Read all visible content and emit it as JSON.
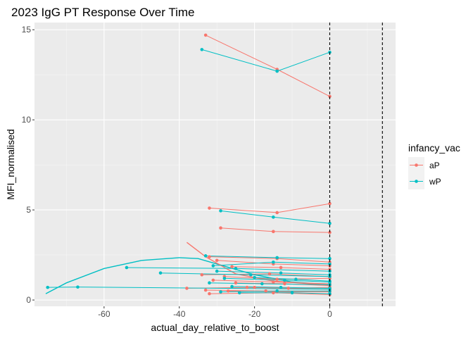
{
  "chart_data": {
    "type": "line",
    "title": "2023 IgG PT Response Over Time",
    "xlabel": "actual_day_relative_to_boost",
    "ylabel": "MFI_normalised",
    "xlim": [
      -78.5,
      17.5
    ],
    "ylim": [
      -0.35,
      15.4
    ],
    "x_ticks": [
      -60,
      -40,
      -20,
      0
    ],
    "x_tick_labels": [
      "-60",
      "-40",
      "-20",
      "0"
    ],
    "y_ticks": [
      0,
      5,
      10,
      15
    ],
    "y_tick_labels": [
      "0",
      "5",
      "10",
      "15"
    ],
    "grid": true,
    "vlines": [
      0,
      14
    ],
    "legend": {
      "title": "infancy_vac",
      "position": "right",
      "entries": [
        {
          "label": "aP",
          "color": "#F8766D"
        },
        {
          "label": "wP",
          "color": "#00BFC4"
        }
      ]
    },
    "series": [
      {
        "name": "aP",
        "color": "#F8766D",
        "subjects": [
          [
            [
              -33,
              14.7
            ],
            [
              -14,
              12.8
            ],
            [
              0,
              11.3
            ]
          ],
          [
            [
              -32,
              5.1
            ],
            [
              -14,
              4.85
            ],
            [
              0,
              5.35
            ]
          ],
          [
            [
              -29,
              4.0
            ],
            [
              -15,
              3.8
            ],
            [
              0,
              3.75
            ]
          ],
          [
            [
              -32,
              2.4
            ],
            [
              -14,
              2.3
            ],
            [
              0,
              2.1
            ]
          ],
          [
            [
              -30,
              2.2
            ],
            [
              -15,
              2.0
            ],
            [
              0,
              1.9
            ]
          ],
          [
            [
              -26,
              1.85
            ],
            [
              -13,
              1.8
            ],
            [
              0,
              1.7
            ]
          ],
          [
            [
              -34,
              1.4
            ],
            [
              -16,
              1.45
            ],
            [
              0,
              1.3
            ]
          ],
          [
            [
              -28,
              1.3
            ],
            [
              -14,
              1.15
            ],
            [
              0,
              1.2
            ]
          ],
          [
            [
              -31,
              1.1
            ],
            [
              -15,
              1.0
            ],
            [
              0,
              0.9
            ]
          ],
          [
            [
              -25,
              0.95
            ],
            [
              -12,
              0.9
            ],
            [
              0,
              0.8
            ]
          ],
          [
            [
              -38,
              0.65
            ],
            [
              -20,
              0.7
            ],
            [
              0,
              0.6
            ]
          ],
          [
            [
              -33,
              0.55
            ],
            [
              -17,
              0.5
            ],
            [
              0,
              0.5
            ]
          ],
          [
            [
              -27,
              0.5
            ],
            [
              -14,
              0.45
            ],
            [
              0,
              0.45
            ]
          ],
          [
            [
              -32,
              0.35
            ],
            [
              -15,
              0.4
            ],
            [
              0,
              0.3
            ]
          ],
          [
            [
              -22,
              0.7
            ],
            [
              -11,
              0.65
            ],
            [
              0,
              0.7
            ]
          ]
        ]
      },
      {
        "name": "wP",
        "color": "#00BFC4",
        "subjects": [
          [
            [
              -34,
              13.9
            ],
            [
              -14,
              12.7
            ],
            [
              0,
              13.75
            ]
          ],
          [
            [
              -29,
              4.95
            ],
            [
              -15,
              4.6
            ],
            [
              0,
              4.25
            ]
          ],
          [
            [
              -33,
              2.45
            ],
            [
              -14,
              2.35
            ],
            [
              0,
              2.3
            ]
          ],
          [
            [
              -31,
              1.9
            ],
            [
              -15,
              2.1
            ],
            [
              0,
              2.0
            ]
          ],
          [
            [
              -54,
              1.8
            ],
            [
              -25,
              1.75
            ],
            [
              0,
              1.6
            ]
          ],
          [
            [
              -45,
              1.5
            ],
            [
              -21,
              1.4
            ],
            [
              0,
              1.3
            ]
          ],
          [
            [
              -30,
              1.6
            ],
            [
              -13,
              1.5
            ],
            [
              0,
              1.4
            ]
          ],
          [
            [
              -28,
              1.2
            ],
            [
              -12,
              1.1
            ],
            [
              0,
              1.0
            ]
          ],
          [
            [
              -32,
              0.95
            ],
            [
              -18,
              0.9
            ],
            [
              0,
              0.85
            ]
          ],
          [
            [
              -26,
              0.75
            ],
            [
              -13,
              0.7
            ],
            [
              0,
              0.65
            ]
          ],
          [
            [
              -75,
              0.7
            ],
            [
              -67,
              0.72
            ],
            [
              0,
              0.6
            ]
          ],
          [
            [
              -24,
              0.4
            ],
            [
              -10,
              0.4
            ],
            [
              0,
              0.35
            ]
          ],
          [
            [
              -29,
              0.45
            ],
            [
              -14,
              0.5
            ],
            [
              0,
              0.5
            ]
          ],
          [
            [
              -20,
              1.25
            ],
            [
              -9,
              1.15
            ],
            [
              0,
              1.05
            ]
          ]
        ]
      }
    ],
    "smooth_curves": [
      {
        "series": "wP",
        "points": [
          [
            -75.5,
            0.35
          ],
          [
            -70,
            0.95
          ],
          [
            -60,
            1.75
          ],
          [
            -50,
            2.2
          ],
          [
            -40,
            2.35
          ],
          [
            -35,
            2.3
          ],
          [
            -30,
            2.0
          ],
          [
            -20,
            1.4
          ],
          [
            -10,
            1.0
          ],
          [
            0,
            0.85
          ]
        ]
      },
      {
        "series": "aP",
        "points": [
          [
            -38,
            3.2
          ],
          [
            -33,
            2.4
          ],
          [
            -25,
            1.45
          ],
          [
            -15,
            1.05
          ],
          [
            -5,
            0.9
          ],
          [
            0,
            0.85
          ]
        ]
      }
    ]
  }
}
